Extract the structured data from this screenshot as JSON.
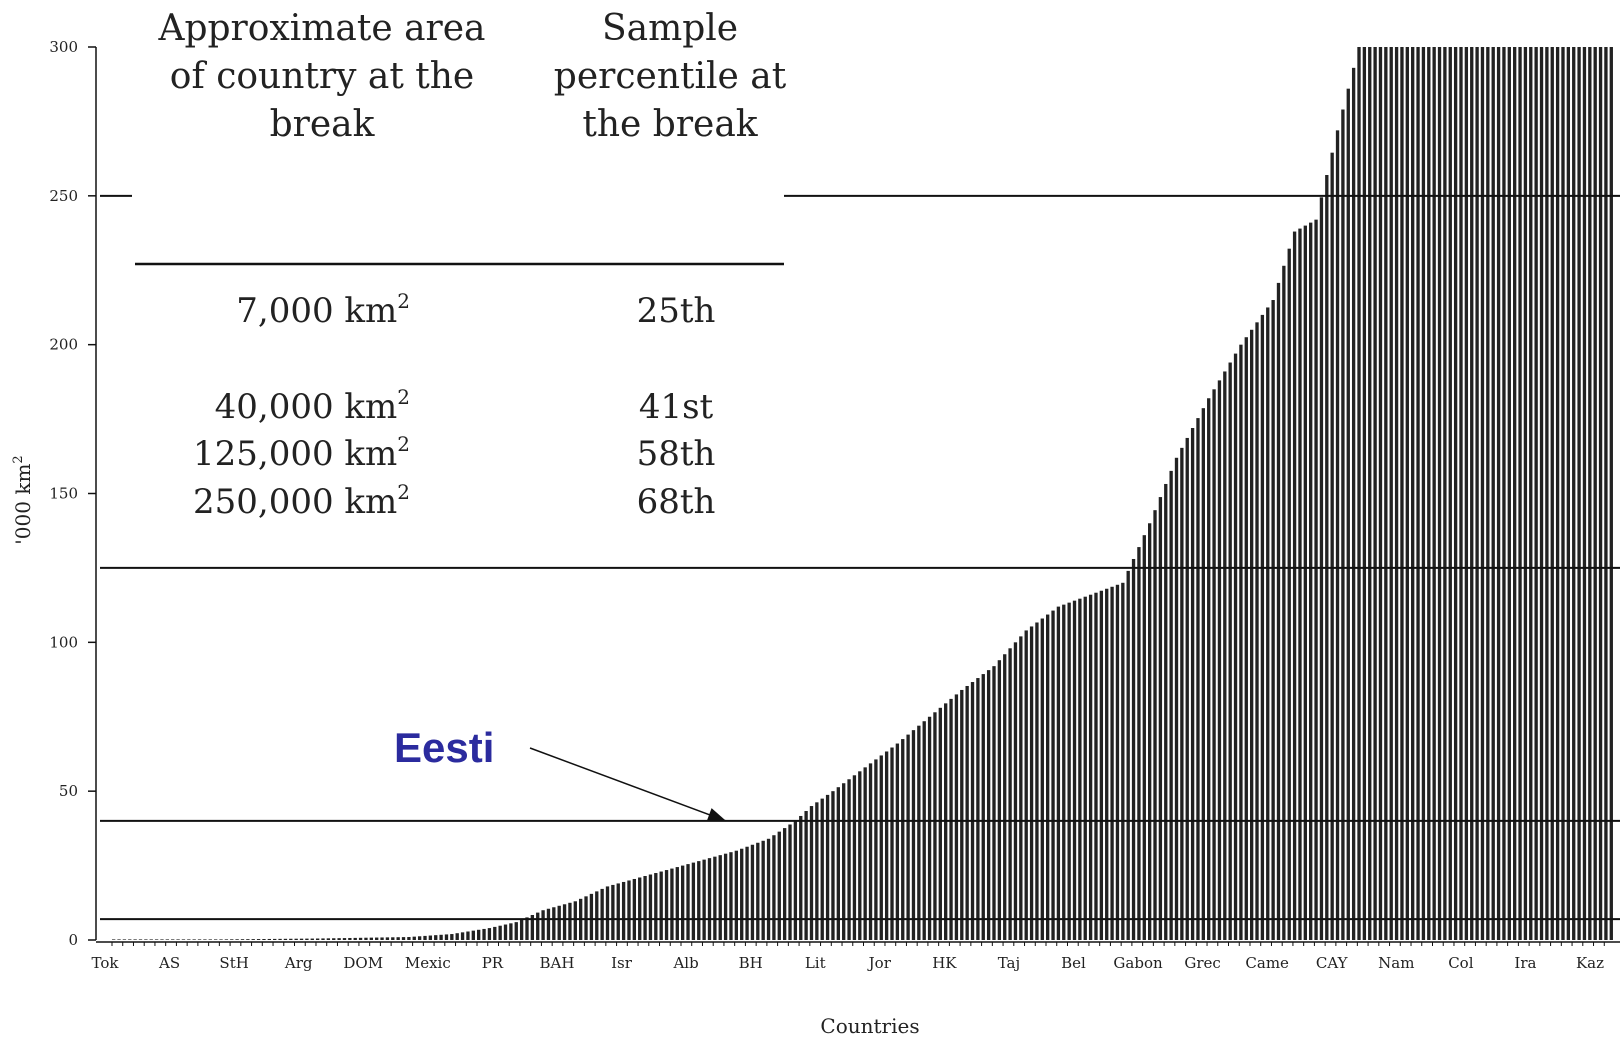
{
  "chart_data": {
    "type": "bar",
    "xlabel": "Countries",
    "ylabel": "'000 km",
    "ylabel_sup": "2",
    "ylim": [
      0,
      300
    ],
    "yticks": [
      0,
      50,
      100,
      150,
      200,
      250,
      300
    ],
    "grid": false,
    "categories": [
      "Tok",
      "AS",
      "StH",
      "Arg",
      "DOM",
      "Mexic",
      "PR",
      "BAH",
      "Isr",
      "Alb",
      "BH",
      "Lit",
      "Jor",
      "HK",
      "Taj",
      "Bel",
      "Gabon",
      "Grec",
      "Came",
      "CAY",
      "Nam",
      "Col",
      "Ira",
      "Kaz"
    ],
    "bar_count": 280,
    "values_profile": [
      [
        0,
        0
      ],
      [
        20,
        0.2
      ],
      [
        38,
        0.5
      ],
      [
        55,
        1
      ],
      [
        63,
        2
      ],
      [
        70,
        4
      ],
      [
        75,
        6
      ],
      [
        80,
        10
      ],
      [
        86,
        13
      ],
      [
        92,
        18
      ],
      [
        100,
        22
      ],
      [
        108,
        26
      ],
      [
        116,
        30
      ],
      [
        122,
        34
      ],
      [
        127,
        40
      ],
      [
        130,
        45
      ],
      [
        134,
        50
      ],
      [
        140,
        58
      ],
      [
        146,
        66
      ],
      [
        152,
        75
      ],
      [
        158,
        84
      ],
      [
        164,
        92
      ],
      [
        170,
        104
      ],
      [
        176,
        112
      ],
      [
        182,
        116
      ],
      [
        188,
        120
      ],
      [
        193,
        140
      ],
      [
        198,
        162
      ],
      [
        204,
        182
      ],
      [
        210,
        200
      ],
      [
        216,
        215
      ],
      [
        220,
        238
      ],
      [
        224,
        242
      ],
      [
        228,
        272
      ],
      [
        232,
        300
      ],
      [
        280,
        300
      ]
    ],
    "reference_lines": [
      7,
      40,
      125,
      250
    ],
    "table": {
      "col1_header": [
        "Approximate area",
        "of country at the",
        "break"
      ],
      "col2_header": [
        "Sample",
        "percentile at",
        "the break"
      ],
      "rows": [
        {
          "area": "7,000 km",
          "sup": "2",
          "percentile": "25th"
        },
        {
          "area": "40,000 km",
          "sup": "2",
          "percentile": "41st"
        },
        {
          "area": "125,000 km",
          "sup": "2",
          "percentile": "58th"
        },
        {
          "area": "250,000 km",
          "sup": "2",
          "percentile": "68th"
        }
      ]
    },
    "annotation": {
      "text": "Eesti",
      "value": 40,
      "color": "#2b2b9e"
    },
    "bar_color": "#222222"
  }
}
